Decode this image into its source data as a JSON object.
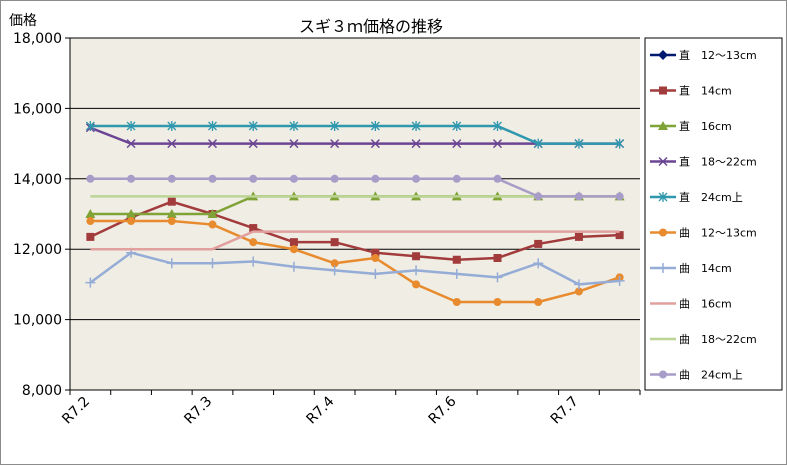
{
  "chart_data": {
    "type": "line",
    "title": "スギ３ｍ価格の推移",
    "ylabel": "価格",
    "xlabel": "",
    "ylim": [
      8000,
      18000
    ],
    "yticks": [
      8000,
      10000,
      12000,
      14000,
      16000,
      18000
    ],
    "ytick_labels": [
      "8,000",
      "10,000",
      "12,000",
      "14,000",
      "16,000",
      "18,000"
    ],
    "x_count": 14,
    "xtick_labels": [
      {
        "index": 0,
        "label": "R7.2"
      },
      {
        "index": 3,
        "label": "R7.3"
      },
      {
        "index": 6,
        "label": "R7.4"
      },
      {
        "index": 9,
        "label": "R7.6"
      },
      {
        "index": 12,
        "label": "R7.7"
      }
    ],
    "grid": true,
    "legend_position": "right",
    "plot_background": "#efede4",
    "series": [
      {
        "name": "直　12～13cm",
        "color": "#001a70",
        "marker": "diamond",
        "values": [
          null,
          null,
          null,
          null,
          null,
          null,
          null,
          null,
          null,
          null,
          null,
          null,
          null,
          null
        ]
      },
      {
        "name": "直　14cm",
        "color": "#a23b3b",
        "marker": "square",
        "values": [
          12350,
          12900,
          13350,
          13000,
          12600,
          12200,
          12200,
          11900,
          11800,
          11700,
          11750,
          12150,
          12350,
          12400
        ]
      },
      {
        "name": "直　16cm",
        "color": "#7fa336",
        "marker": "triangle",
        "values": [
          13000,
          13000,
          13000,
          13000,
          13500,
          13500,
          13500,
          13500,
          13500,
          13500,
          13500,
          13500,
          13500,
          13500
        ]
      },
      {
        "name": "直　18～22cm",
        "color": "#6b4593",
        "marker": "x",
        "values": [
          15450,
          15000,
          15000,
          15000,
          15000,
          15000,
          15000,
          15000,
          15000,
          15000,
          15000,
          15000,
          15000,
          15000
        ]
      },
      {
        "name": "直　24cm上",
        "color": "#2f97ae",
        "marker": "star",
        "values": [
          15500,
          15500,
          15500,
          15500,
          15500,
          15500,
          15500,
          15500,
          15500,
          15500,
          15500,
          15000,
          15000,
          15000
        ]
      },
      {
        "name": "曲　12～13cm",
        "color": "#e88b2e",
        "marker": "circle",
        "values": [
          12800,
          12800,
          12800,
          12700,
          12200,
          12000,
          11600,
          11750,
          11000,
          10500,
          10500,
          10500,
          10800,
          11200
        ]
      },
      {
        "name": "曲　14cm",
        "color": "#95acd6",
        "marker": "plus",
        "values": [
          11050,
          11900,
          11600,
          11600,
          11650,
          11500,
          11400,
          11300,
          11400,
          11300,
          11200,
          11600,
          11000,
          11100
        ]
      },
      {
        "name": "曲　16cm",
        "color": "#e1a09e",
        "marker": "none",
        "values": [
          12000,
          12000,
          12000,
          12000,
          12500,
          12500,
          12500,
          12500,
          12500,
          12500,
          12500,
          12500,
          12500,
          12500
        ]
      },
      {
        "name": "曲　18～22cm",
        "color": "#bcd596",
        "marker": "none",
        "values": [
          13500,
          13500,
          13500,
          13500,
          13500,
          13500,
          13500,
          13500,
          13500,
          13500,
          13500,
          13500,
          13500,
          13500
        ]
      },
      {
        "name": "曲　24cm上",
        "color": "#a89cc8",
        "marker": "circle",
        "values": [
          14000,
          14000,
          14000,
          14000,
          14000,
          14000,
          14000,
          14000,
          14000,
          14000,
          14000,
          13500,
          13500,
          13500
        ]
      }
    ]
  }
}
